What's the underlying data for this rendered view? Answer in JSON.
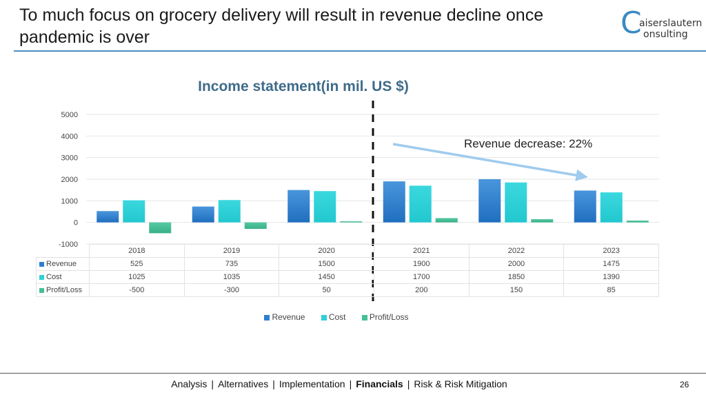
{
  "slide": {
    "title": "To much focus on grocery delivery will result in revenue decline once pandemic is over",
    "page_number": "26"
  },
  "logo": {
    "letter": "C",
    "line1": "aiserslautern",
    "line2": "onsulting"
  },
  "annotation": {
    "text": "Revenue decrease: 22%"
  },
  "footer": {
    "items": [
      {
        "label": "Analysis",
        "active": false
      },
      {
        "label": "Alternatives",
        "active": false
      },
      {
        "label": "Implementation",
        "active": false
      },
      {
        "label": "Financials",
        "active": true
      },
      {
        "label": "Risk & Risk Mitigation",
        "active": false
      }
    ],
    "separator": "|"
  },
  "chart_data": {
    "type": "bar",
    "title": "Income statement(in mil. US $)",
    "categories": [
      "2018",
      "2019",
      "2020",
      "2021",
      "2022",
      "2023"
    ],
    "series": [
      {
        "name": "Revenue",
        "values": [
          525,
          735,
          1500,
          1900,
          2000,
          1475
        ],
        "color": "#2e7fd0"
      },
      {
        "name": "Cost",
        "values": [
          1025,
          1035,
          1450,
          1700,
          1850,
          1390
        ],
        "color": "#2fd0d6"
      },
      {
        "name": "Profit/Loss",
        "values": [
          -500,
          -300,
          50,
          200,
          150,
          85
        ],
        "color": "#45bf98"
      }
    ],
    "yticks": [
      "5000",
      "4000",
      "3000",
      "2000",
      "1000",
      "0",
      "-1000"
    ],
    "ylim": [
      -1000,
      5000
    ],
    "grid": true,
    "legend": "bottom",
    "data_table": true
  }
}
